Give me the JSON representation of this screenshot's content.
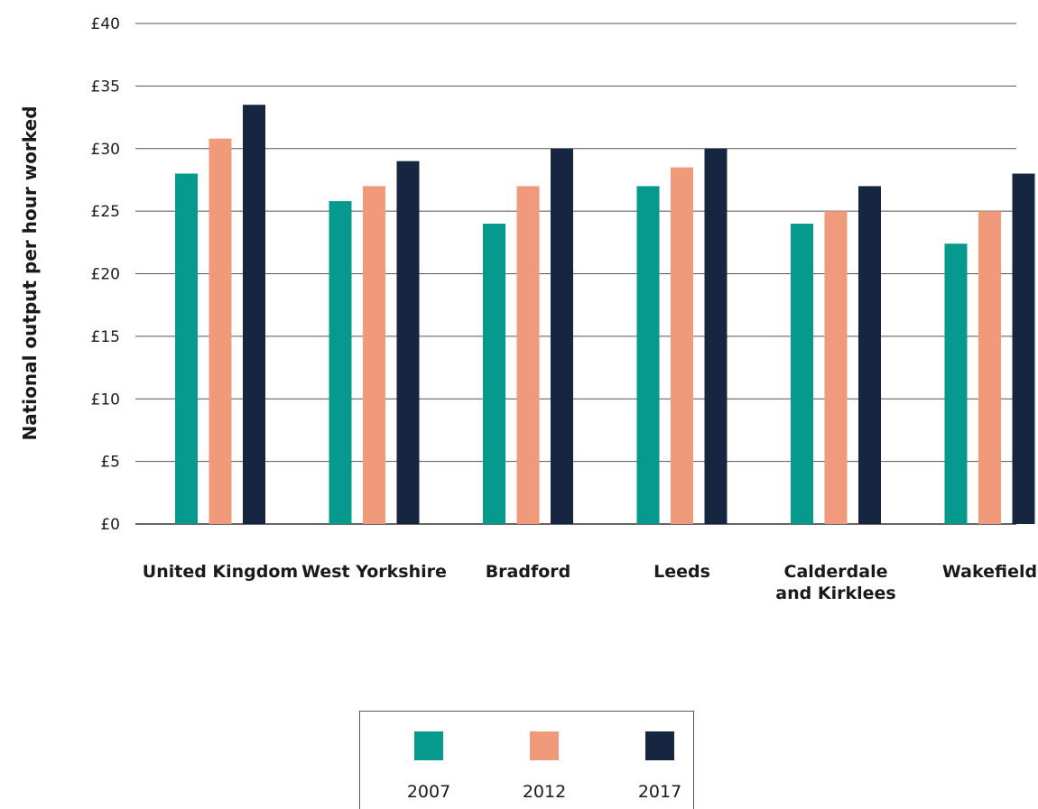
{
  "chart_data": {
    "type": "bar",
    "ylabel": "National output per hour worked",
    "xlabel": "",
    "ylim": [
      0,
      40
    ],
    "y_ticks": [
      "£0",
      "£5",
      "£10",
      "£15",
      "£20",
      "£25",
      "£30",
      "£35",
      "£40"
    ],
    "grid": true,
    "legend_position": "bottom-center",
    "categories": [
      [
        "United Kingdom"
      ],
      [
        "West Yorkshire"
      ],
      [
        "Bradford"
      ],
      [
        "Leeds"
      ],
      [
        "Calderdale",
        "and Kirklees"
      ],
      [
        "Wakefield"
      ]
    ],
    "series": [
      {
        "name": "2007",
        "color": "#069a8e",
        "values": [
          28,
          25.8,
          24,
          27,
          24,
          22.4
        ]
      },
      {
        "name": "2012",
        "color": "#f0997b",
        "values": [
          30.8,
          27,
          27,
          28.5,
          25,
          25
        ]
      },
      {
        "name": "2017",
        "color": "#172640",
        "values": [
          33.5,
          29,
          30,
          30,
          27,
          28
        ]
      }
    ]
  }
}
